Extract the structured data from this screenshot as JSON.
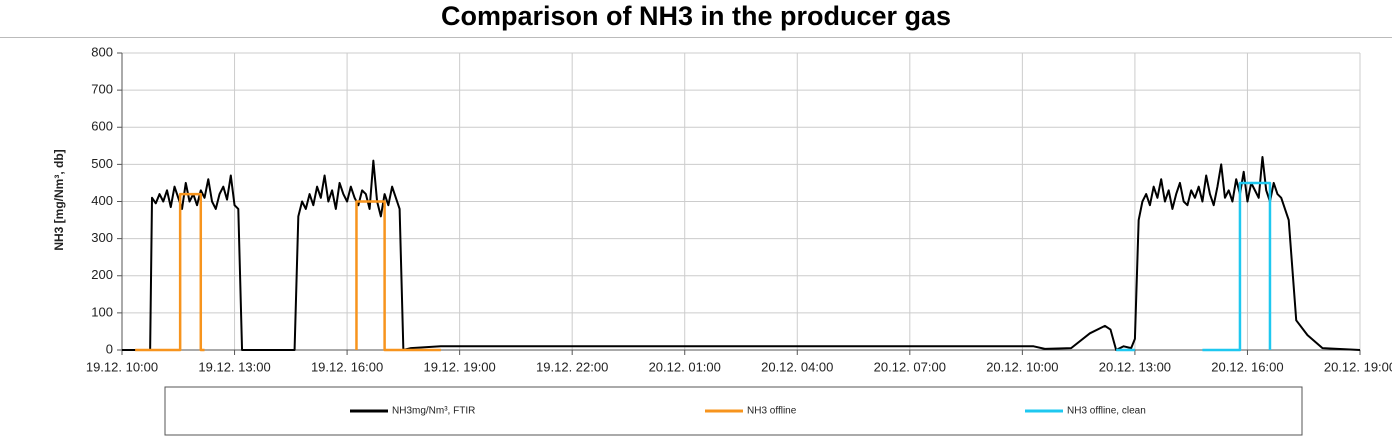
{
  "chart_data": {
    "type": "line",
    "title": "Comparison of NH3 in the producer gas",
    "y_label": "NH3 [mg/Nm³, db]",
    "xlim": [
      10,
      43
    ],
    "ylim": [
      0,
      800
    ],
    "yticks": [
      0,
      100,
      200,
      300,
      400,
      500,
      600,
      700,
      800
    ],
    "xticks": [
      {
        "value": 10,
        "label": "19.12. 10:00"
      },
      {
        "value": 13,
        "label": "19.12. 13:00"
      },
      {
        "value": 16,
        "label": "19.12. 16:00"
      },
      {
        "value": 19,
        "label": "19.12. 19:00"
      },
      {
        "value": 22,
        "label": "19.12. 22:00"
      },
      {
        "value": 25,
        "label": "20.12. 01:00"
      },
      {
        "value": 28,
        "label": "20.12. 04:00"
      },
      {
        "value": 31,
        "label": "20.12. 07:00"
      },
      {
        "value": 34,
        "label": "20.12. 10:00"
      },
      {
        "value": 37,
        "label": "20.12. 13:00"
      },
      {
        "value": 40,
        "label": "20.12. 16:00"
      },
      {
        "value": 43,
        "label": "20.12. 19:00"
      }
    ],
    "grid": true,
    "legend": "bottom",
    "series": [
      {
        "name": "NH3mg/Nm³, FTIR",
        "color": "#000000",
        "x": [
          10,
          10.75,
          10.8,
          10.9,
          11,
          11.1,
          11.2,
          11.3,
          11.4,
          11.5,
          11.6,
          11.7,
          11.8,
          11.9,
          12,
          12.1,
          12.2,
          12.3,
          12.4,
          12.5,
          12.6,
          12.7,
          12.8,
          12.9,
          13,
          13.1,
          13.2,
          14.6,
          14.7,
          14.8,
          14.9,
          15,
          15.1,
          15.2,
          15.3,
          15.4,
          15.5,
          15.6,
          15.7,
          15.8,
          15.9,
          16,
          16.1,
          16.2,
          16.3,
          16.4,
          16.5,
          16.6,
          16.7,
          16.8,
          16.9,
          17,
          17.1,
          17.2,
          17.3,
          17.4,
          17.5,
          17.7,
          18.5,
          34.3,
          34.6,
          35.3,
          35.8,
          36.2,
          36.35,
          36.5,
          36.7,
          36.9,
          37,
          37.1,
          37.2,
          37.3,
          37.4,
          37.5,
          37.6,
          37.7,
          37.8,
          37.9,
          38,
          38.1,
          38.2,
          38.3,
          38.4,
          38.5,
          38.6,
          38.7,
          38.8,
          38.9,
          39,
          39.1,
          39.2,
          39.3,
          39.4,
          39.5,
          39.6,
          39.7,
          39.8,
          39.9,
          40,
          40.1,
          40.2,
          40.3,
          40.4,
          40.5,
          40.6,
          40.7,
          40.8,
          40.9,
          41.1,
          41.3,
          41.6,
          42,
          43
        ],
        "values": [
          0,
          0,
          410,
          395,
          420,
          400,
          430,
          385,
          440,
          410,
          380,
          450,
          400,
          420,
          390,
          430,
          410,
          460,
          400,
          380,
          420,
          440,
          405,
          470,
          390,
          380,
          0,
          0,
          360,
          400,
          380,
          420,
          390,
          440,
          410,
          470,
          400,
          430,
          380,
          450,
          420,
          400,
          440,
          410,
          390,
          430,
          420,
          380,
          510,
          400,
          360,
          420,
          390,
          440,
          410,
          380,
          0,
          5,
          10,
          10,
          3,
          5,
          45,
          65,
          55,
          0,
          10,
          5,
          30,
          350,
          400,
          420,
          390,
          440,
          410,
          460,
          400,
          430,
          380,
          420,
          450,
          400,
          390,
          430,
          410,
          440,
          400,
          470,
          420,
          390,
          440,
          500,
          410,
          430,
          400,
          460,
          420,
          480,
          400,
          450,
          430,
          410,
          520,
          430,
          400,
          450,
          420,
          410,
          350,
          80,
          40,
          5,
          0
        ]
      },
      {
        "name": "NH3 offline",
        "color": "#f7941d",
        "x": [
          10.35,
          11.55,
          11.55,
          12.1,
          12.1,
          12.2,
          13,
          14.6,
          15.1,
          16.25,
          16.25,
          17,
          17,
          18.5
        ],
        "values": [
          0,
          0,
          420,
          420,
          0,
          0,
          null,
          0,
          null,
          0,
          400,
          400,
          0,
          0
        ]
      },
      {
        "name": "NH3 offline, clean",
        "color": "#1ec8f0",
        "x": [
          36.5,
          37,
          37.4,
          38.2,
          38.6,
          38.8,
          39.7,
          39.8,
          39.8,
          40.6,
          40.6
        ],
        "values": [
          0,
          0,
          null,
          0,
          null,
          0,
          0,
          0,
          450,
          450,
          0
        ]
      }
    ]
  }
}
